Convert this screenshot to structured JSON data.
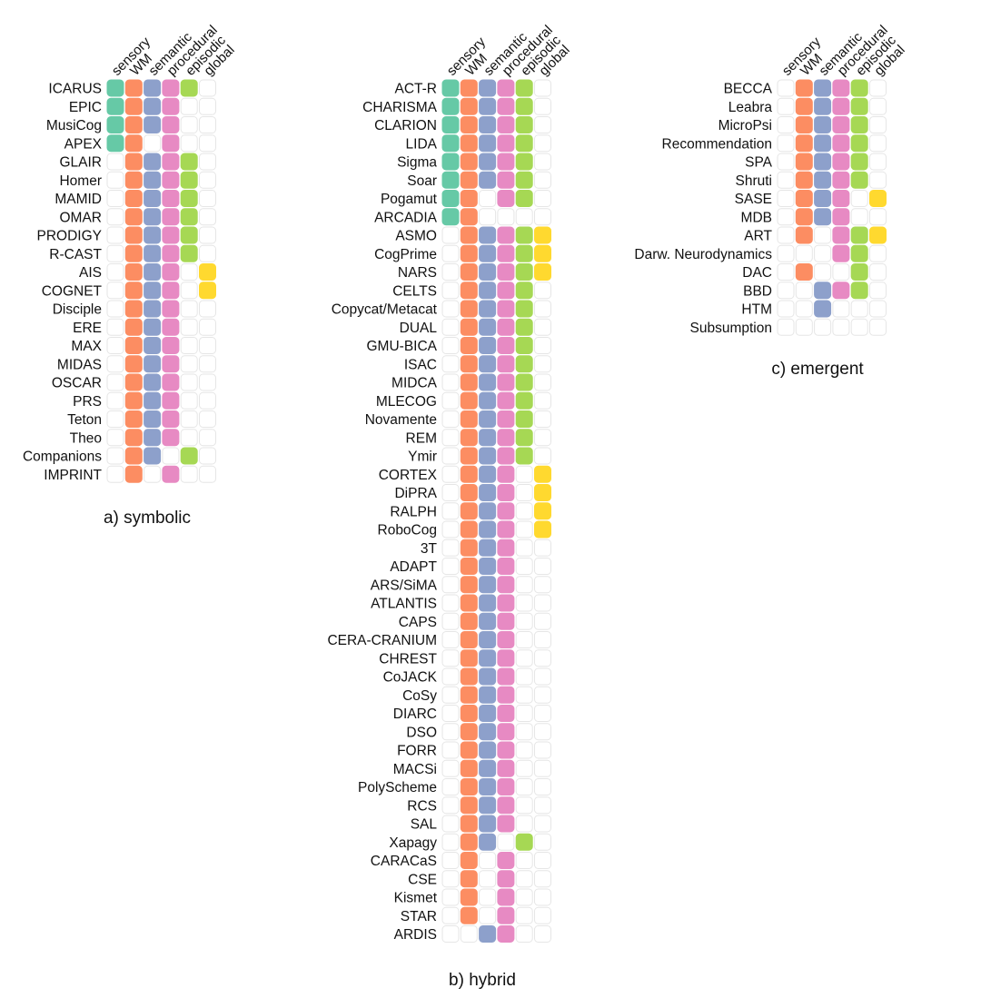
{
  "chart_data": {
    "type": "heatmap",
    "columns": [
      "sensory",
      "WM",
      "semantic",
      "procedural",
      "episodic",
      "global"
    ],
    "colors": {
      "sensory": "#66c9a6",
      "WM": "#fc8d62",
      "semantic": "#8da0cb",
      "procedural": "#e78ac3",
      "episodic": "#a6d854",
      "global": "#ffd92f",
      "empty_fill": "#ffffff",
      "empty_stroke": "#e6e6e6"
    },
    "panels": [
      {
        "title": "a) symbolic",
        "rows": [
          {
            "name": "ICARUS",
            "cells": [
              1,
              1,
              1,
              1,
              1,
              0
            ]
          },
          {
            "name": "EPIC",
            "cells": [
              1,
              1,
              1,
              1,
              0,
              0
            ]
          },
          {
            "name": "MusiCog",
            "cells": [
              1,
              1,
              1,
              1,
              0,
              0
            ]
          },
          {
            "name": "APEX",
            "cells": [
              1,
              1,
              0,
              1,
              0,
              0
            ]
          },
          {
            "name": "GLAIR",
            "cells": [
              0,
              1,
              1,
              1,
              1,
              0
            ]
          },
          {
            "name": "Homer",
            "cells": [
              0,
              1,
              1,
              1,
              1,
              0
            ]
          },
          {
            "name": "MAMID",
            "cells": [
              0,
              1,
              1,
              1,
              1,
              0
            ]
          },
          {
            "name": "OMAR",
            "cells": [
              0,
              1,
              1,
              1,
              1,
              0
            ]
          },
          {
            "name": "PRODIGY",
            "cells": [
              0,
              1,
              1,
              1,
              1,
              0
            ]
          },
          {
            "name": "R-CAST",
            "cells": [
              0,
              1,
              1,
              1,
              1,
              0
            ]
          },
          {
            "name": "AIS",
            "cells": [
              0,
              1,
              1,
              1,
              0,
              1
            ]
          },
          {
            "name": "COGNET",
            "cells": [
              0,
              1,
              1,
              1,
              0,
              1
            ]
          },
          {
            "name": "Disciple",
            "cells": [
              0,
              1,
              1,
              1,
              0,
              0
            ]
          },
          {
            "name": "ERE",
            "cells": [
              0,
              1,
              1,
              1,
              0,
              0
            ]
          },
          {
            "name": "MAX",
            "cells": [
              0,
              1,
              1,
              1,
              0,
              0
            ]
          },
          {
            "name": "MIDAS",
            "cells": [
              0,
              1,
              1,
              1,
              0,
              0
            ]
          },
          {
            "name": "OSCAR",
            "cells": [
              0,
              1,
              1,
              1,
              0,
              0
            ]
          },
          {
            "name": "PRS",
            "cells": [
              0,
              1,
              1,
              1,
              0,
              0
            ]
          },
          {
            "name": "Teton",
            "cells": [
              0,
              1,
              1,
              1,
              0,
              0
            ]
          },
          {
            "name": "Theo",
            "cells": [
              0,
              1,
              1,
              1,
              0,
              0
            ]
          },
          {
            "name": "Companions",
            "cells": [
              0,
              1,
              1,
              0,
              1,
              0
            ]
          },
          {
            "name": "IMPRINT",
            "cells": [
              0,
              1,
              0,
              1,
              0,
              0
            ]
          }
        ]
      },
      {
        "title": "b) hybrid",
        "rows": [
          {
            "name": "ACT-R",
            "cells": [
              1,
              1,
              1,
              1,
              1,
              0
            ]
          },
          {
            "name": "CHARISMA",
            "cells": [
              1,
              1,
              1,
              1,
              1,
              0
            ]
          },
          {
            "name": "CLARION",
            "cells": [
              1,
              1,
              1,
              1,
              1,
              0
            ]
          },
          {
            "name": "LIDA",
            "cells": [
              1,
              1,
              1,
              1,
              1,
              0
            ]
          },
          {
            "name": "Sigma",
            "cells": [
              1,
              1,
              1,
              1,
              1,
              0
            ]
          },
          {
            "name": "Soar",
            "cells": [
              1,
              1,
              1,
              1,
              1,
              0
            ]
          },
          {
            "name": "Pogamut",
            "cells": [
              1,
              1,
              0,
              1,
              1,
              0
            ]
          },
          {
            "name": "ARCADIA",
            "cells": [
              1,
              1,
              0,
              0,
              0,
              0
            ]
          },
          {
            "name": "ASMO",
            "cells": [
              0,
              1,
              1,
              1,
              1,
              1
            ]
          },
          {
            "name": "CogPrime",
            "cells": [
              0,
              1,
              1,
              1,
              1,
              1
            ]
          },
          {
            "name": "NARS",
            "cells": [
              0,
              1,
              1,
              1,
              1,
              1
            ]
          },
          {
            "name": "CELTS",
            "cells": [
              0,
              1,
              1,
              1,
              1,
              0
            ]
          },
          {
            "name": "Copycat/Metacat",
            "cells": [
              0,
              1,
              1,
              1,
              1,
              0
            ]
          },
          {
            "name": "DUAL",
            "cells": [
              0,
              1,
              1,
              1,
              1,
              0
            ]
          },
          {
            "name": "GMU-BICA",
            "cells": [
              0,
              1,
              1,
              1,
              1,
              0
            ]
          },
          {
            "name": "ISAC",
            "cells": [
              0,
              1,
              1,
              1,
              1,
              0
            ]
          },
          {
            "name": "MIDCA",
            "cells": [
              0,
              1,
              1,
              1,
              1,
              0
            ]
          },
          {
            "name": "MLECOG",
            "cells": [
              0,
              1,
              1,
              1,
              1,
              0
            ]
          },
          {
            "name": "Novamente",
            "cells": [
              0,
              1,
              1,
              1,
              1,
              0
            ]
          },
          {
            "name": "REM",
            "cells": [
              0,
              1,
              1,
              1,
              1,
              0
            ]
          },
          {
            "name": "Ymir",
            "cells": [
              0,
              1,
              1,
              1,
              1,
              0
            ]
          },
          {
            "name": "CORTEX",
            "cells": [
              0,
              1,
              1,
              1,
              0,
              1
            ]
          },
          {
            "name": "DiPRA",
            "cells": [
              0,
              1,
              1,
              1,
              0,
              1
            ]
          },
          {
            "name": "RALPH",
            "cells": [
              0,
              1,
              1,
              1,
              0,
              1
            ]
          },
          {
            "name": "RoboCog",
            "cells": [
              0,
              1,
              1,
              1,
              0,
              1
            ]
          },
          {
            "name": "3T",
            "cells": [
              0,
              1,
              1,
              1,
              0,
              0
            ]
          },
          {
            "name": "ADAPT",
            "cells": [
              0,
              1,
              1,
              1,
              0,
              0
            ]
          },
          {
            "name": "ARS/SiMA",
            "cells": [
              0,
              1,
              1,
              1,
              0,
              0
            ]
          },
          {
            "name": "ATLANTIS",
            "cells": [
              0,
              1,
              1,
              1,
              0,
              0
            ]
          },
          {
            "name": "CAPS",
            "cells": [
              0,
              1,
              1,
              1,
              0,
              0
            ]
          },
          {
            "name": "CERA-CRANIUM",
            "cells": [
              0,
              1,
              1,
              1,
              0,
              0
            ]
          },
          {
            "name": "CHREST",
            "cells": [
              0,
              1,
              1,
              1,
              0,
              0
            ]
          },
          {
            "name": "CoJACK",
            "cells": [
              0,
              1,
              1,
              1,
              0,
              0
            ]
          },
          {
            "name": "CoSy",
            "cells": [
              0,
              1,
              1,
              1,
              0,
              0
            ]
          },
          {
            "name": "DIARC",
            "cells": [
              0,
              1,
              1,
              1,
              0,
              0
            ]
          },
          {
            "name": "DSO",
            "cells": [
              0,
              1,
              1,
              1,
              0,
              0
            ]
          },
          {
            "name": "FORR",
            "cells": [
              0,
              1,
              1,
              1,
              0,
              0
            ]
          },
          {
            "name": "MACSi",
            "cells": [
              0,
              1,
              1,
              1,
              0,
              0
            ]
          },
          {
            "name": "PolyScheme",
            "cells": [
              0,
              1,
              1,
              1,
              0,
              0
            ]
          },
          {
            "name": "RCS",
            "cells": [
              0,
              1,
              1,
              1,
              0,
              0
            ]
          },
          {
            "name": "SAL",
            "cells": [
              0,
              1,
              1,
              1,
              0,
              0
            ]
          },
          {
            "name": "Xapagy",
            "cells": [
              0,
              1,
              1,
              0,
              1,
              0
            ]
          },
          {
            "name": "CARACaS",
            "cells": [
              0,
              1,
              0,
              1,
              0,
              0
            ]
          },
          {
            "name": "CSE",
            "cells": [
              0,
              1,
              0,
              1,
              0,
              0
            ]
          },
          {
            "name": "Kismet",
            "cells": [
              0,
              1,
              0,
              1,
              0,
              0
            ]
          },
          {
            "name": "STAR",
            "cells": [
              0,
              1,
              0,
              1,
              0,
              0
            ]
          },
          {
            "name": "ARDIS",
            "cells": [
              0,
              0,
              1,
              1,
              0,
              0
            ]
          }
        ]
      },
      {
        "title": "c) emergent",
        "rows": [
          {
            "name": "BECCA",
            "cells": [
              0,
              1,
              1,
              1,
              1,
              0
            ]
          },
          {
            "name": "Leabra",
            "cells": [
              0,
              1,
              1,
              1,
              1,
              0
            ]
          },
          {
            "name": "MicroPsi",
            "cells": [
              0,
              1,
              1,
              1,
              1,
              0
            ]
          },
          {
            "name": "Recommendation",
            "cells": [
              0,
              1,
              1,
              1,
              1,
              0
            ]
          },
          {
            "name": "SPA",
            "cells": [
              0,
              1,
              1,
              1,
              1,
              0
            ]
          },
          {
            "name": "Shruti",
            "cells": [
              0,
              1,
              1,
              1,
              1,
              0
            ]
          },
          {
            "name": "SASE",
            "cells": [
              0,
              1,
              1,
              1,
              0,
              1
            ]
          },
          {
            "name": "MDB",
            "cells": [
              0,
              1,
              1,
              1,
              0,
              0
            ]
          },
          {
            "name": "ART",
            "cells": [
              0,
              1,
              0,
              1,
              1,
              1
            ]
          },
          {
            "name": "Darw. Neurodynamics",
            "cells": [
              0,
              0,
              0,
              1,
              1,
              0
            ]
          },
          {
            "name": "DAC",
            "cells": [
              0,
              1,
              0,
              0,
              1,
              0
            ]
          },
          {
            "name": "BBD",
            "cells": [
              0,
              0,
              1,
              1,
              1,
              0
            ]
          },
          {
            "name": "HTM",
            "cells": [
              0,
              0,
              1,
              0,
              0,
              0
            ]
          },
          {
            "name": "Subsumption",
            "cells": [
              0,
              0,
              0,
              0,
              0,
              0
            ]
          }
        ]
      }
    ]
  }
}
